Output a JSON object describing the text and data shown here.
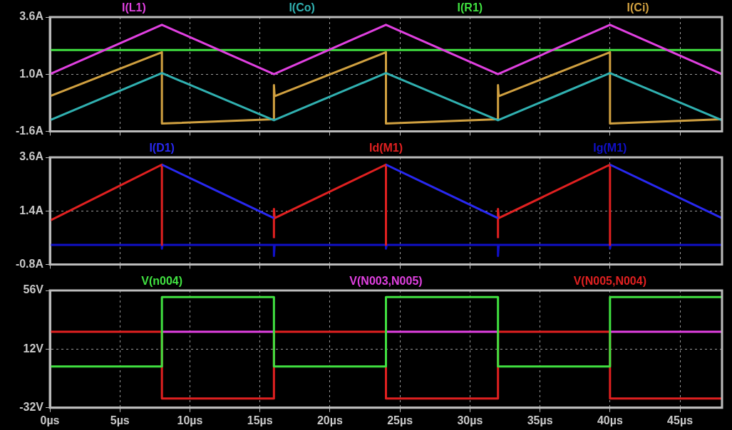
{
  "chart_data": [
    {
      "type": "line",
      "xlim": [
        0,
        48
      ],
      "xticks": [
        {
          "value": 0,
          "label": null
        },
        {
          "value": 5,
          "label": null
        },
        {
          "value": 10,
          "label": null
        },
        {
          "value": 15,
          "label": null
        },
        {
          "value": 20,
          "label": null
        },
        {
          "value": 25,
          "label": null
        },
        {
          "value": 30,
          "label": null
        },
        {
          "value": 35,
          "label": null
        },
        {
          "value": 40,
          "label": null
        },
        {
          "value": 45,
          "label": null
        }
      ],
      "ylim": [
        -1.6,
        3.6
      ],
      "yticks": [
        {
          "value": -1.6,
          "label": "-1.6A"
        },
        {
          "value": 1.0,
          "label": "1.0A"
        },
        {
          "value": 3.6,
          "label": "3.6A"
        }
      ],
      "grid": true,
      "legend": "top",
      "marker": "none",
      "tick_labels": "y",
      "series": [
        {
          "name": "I(L1)",
          "color": "#e040e0",
          "x": [
            0,
            8,
            16,
            24,
            32,
            40,
            48
          ],
          "values": [
            1.0,
            3.25,
            1.0,
            3.25,
            1.0,
            3.25,
            1.0
          ]
        },
        {
          "name": "I(Co)",
          "color": "#30b0b0",
          "x": [
            0,
            8,
            16,
            24,
            32,
            40,
            48
          ],
          "values": [
            -1.1,
            1.05,
            -1.1,
            1.05,
            -1.1,
            1.05,
            -1.1
          ]
        },
        {
          "name": "I(R1)",
          "color": "#40e040",
          "x": [
            0,
            48
          ],
          "values": [
            2.1,
            2.1
          ]
        },
        {
          "name": "I(Ci)",
          "color": "#d0a040",
          "x": [
            0,
            8,
            8,
            16,
            16,
            16.05,
            24,
            24,
            32,
            32,
            32.05,
            40,
            40,
            48
          ],
          "values": [
            0.0,
            2.0,
            -1.25,
            -1.05,
            0.5,
            0.0,
            2.0,
            -1.25,
            -1.05,
            0.5,
            0.0,
            2.0,
            -1.25,
            -1.05
          ]
        }
      ]
    },
    {
      "type": "line",
      "xlim": [
        0,
        48
      ],
      "xticks": [
        {
          "value": 0,
          "label": null
        },
        {
          "value": 5,
          "label": null
        },
        {
          "value": 10,
          "label": null
        },
        {
          "value": 15,
          "label": null
        },
        {
          "value": 20,
          "label": null
        },
        {
          "value": 25,
          "label": null
        },
        {
          "value": 30,
          "label": null
        },
        {
          "value": 35,
          "label": null
        },
        {
          "value": 40,
          "label": null
        },
        {
          "value": 45,
          "label": null
        }
      ],
      "ylim": [
        -0.8,
        3.6
      ],
      "yticks": [
        {
          "value": -0.8,
          "label": "-0.8A"
        },
        {
          "value": 1.4,
          "label": "1.4A"
        },
        {
          "value": 3.6,
          "label": "3.6A"
        }
      ],
      "grid": true,
      "legend": "top",
      "marker": "none",
      "tick_labels": "y",
      "series": [
        {
          "name": "I(D1)",
          "color": "#2828f0",
          "x": [
            8,
            16,
            20,
            24,
            32,
            36,
            40,
            48
          ],
          "values": [
            3.3,
            1.1,
            null,
            3.3,
            1.1,
            null,
            3.3,
            1.1
          ]
        },
        {
          "name": "Id(M1)",
          "color": "#e02020",
          "x": [
            0,
            8,
            8,
            12,
            16,
            16,
            16.05,
            24,
            24,
            28,
            32,
            32,
            32.05,
            40,
            40
          ],
          "values": [
            1.0,
            3.3,
            0.0,
            null,
            0.28,
            1.48,
            1.1,
            3.3,
            0.0,
            null,
            0.28,
            1.48,
            1.1,
            3.3,
            0.0
          ]
        },
        {
          "name": "Ig(M1)",
          "color": "#1010c8",
          "x": [
            0,
            8,
            8,
            8.05,
            16,
            16,
            16.05,
            24,
            24,
            24.05,
            32,
            32,
            32.05,
            40,
            40,
            40.05,
            48
          ],
          "values": [
            0,
            0,
            -0.15,
            0,
            0,
            -0.45,
            0,
            0,
            -0.15,
            0,
            0,
            -0.45,
            0,
            0,
            -0.15,
            0,
            0
          ]
        }
      ]
    },
    {
      "type": "line",
      "xlim": [
        0,
        48
      ],
      "xticks": [
        {
          "value": 0,
          "label": "0µs"
        },
        {
          "value": 5,
          "label": "5µs"
        },
        {
          "value": 10,
          "label": "10µs"
        },
        {
          "value": 15,
          "label": "15µs"
        },
        {
          "value": 20,
          "label": "20µs"
        },
        {
          "value": 25,
          "label": "25µs"
        },
        {
          "value": 30,
          "label": "30µs"
        },
        {
          "value": 35,
          "label": "35µs"
        },
        {
          "value": 40,
          "label": "40µs"
        },
        {
          "value": 45,
          "label": "45µs"
        }
      ],
      "ylim": [
        -32,
        56
      ],
      "yticks": [
        {
          "value": -32,
          "label": "-32V"
        },
        {
          "value": 12,
          "label": "12V"
        },
        {
          "value": 56,
          "label": "56V"
        }
      ],
      "grid": true,
      "legend": "top",
      "marker": "none",
      "series": [
        {
          "name": "V(n004)",
          "color": "#40e040",
          "x": [
            0,
            8,
            8,
            16,
            16,
            24,
            24,
            32,
            32,
            40,
            40,
            48
          ],
          "values": [
            -1,
            -1,
            51,
            51,
            -1,
            -1,
            51,
            51,
            -1,
            -1,
            51,
            51
          ]
        },
        {
          "name": "V(N003,N005)",
          "color": "#e040e0",
          "x": [
            8,
            16,
            20,
            24,
            32,
            36,
            40,
            48
          ],
          "values": [
            25,
            25,
            null,
            25,
            25,
            null,
            25,
            25
          ]
        },
        {
          "name": "V(N005,N004)",
          "color": "#e02020",
          "x": [
            0,
            8,
            8,
            16,
            16,
            24,
            24,
            32,
            32,
            40,
            40,
            48
          ],
          "values": [
            25,
            25,
            -25,
            -25,
            25,
            25,
            -25,
            -25,
            25,
            25,
            -25,
            -25
          ]
        }
      ]
    }
  ]
}
